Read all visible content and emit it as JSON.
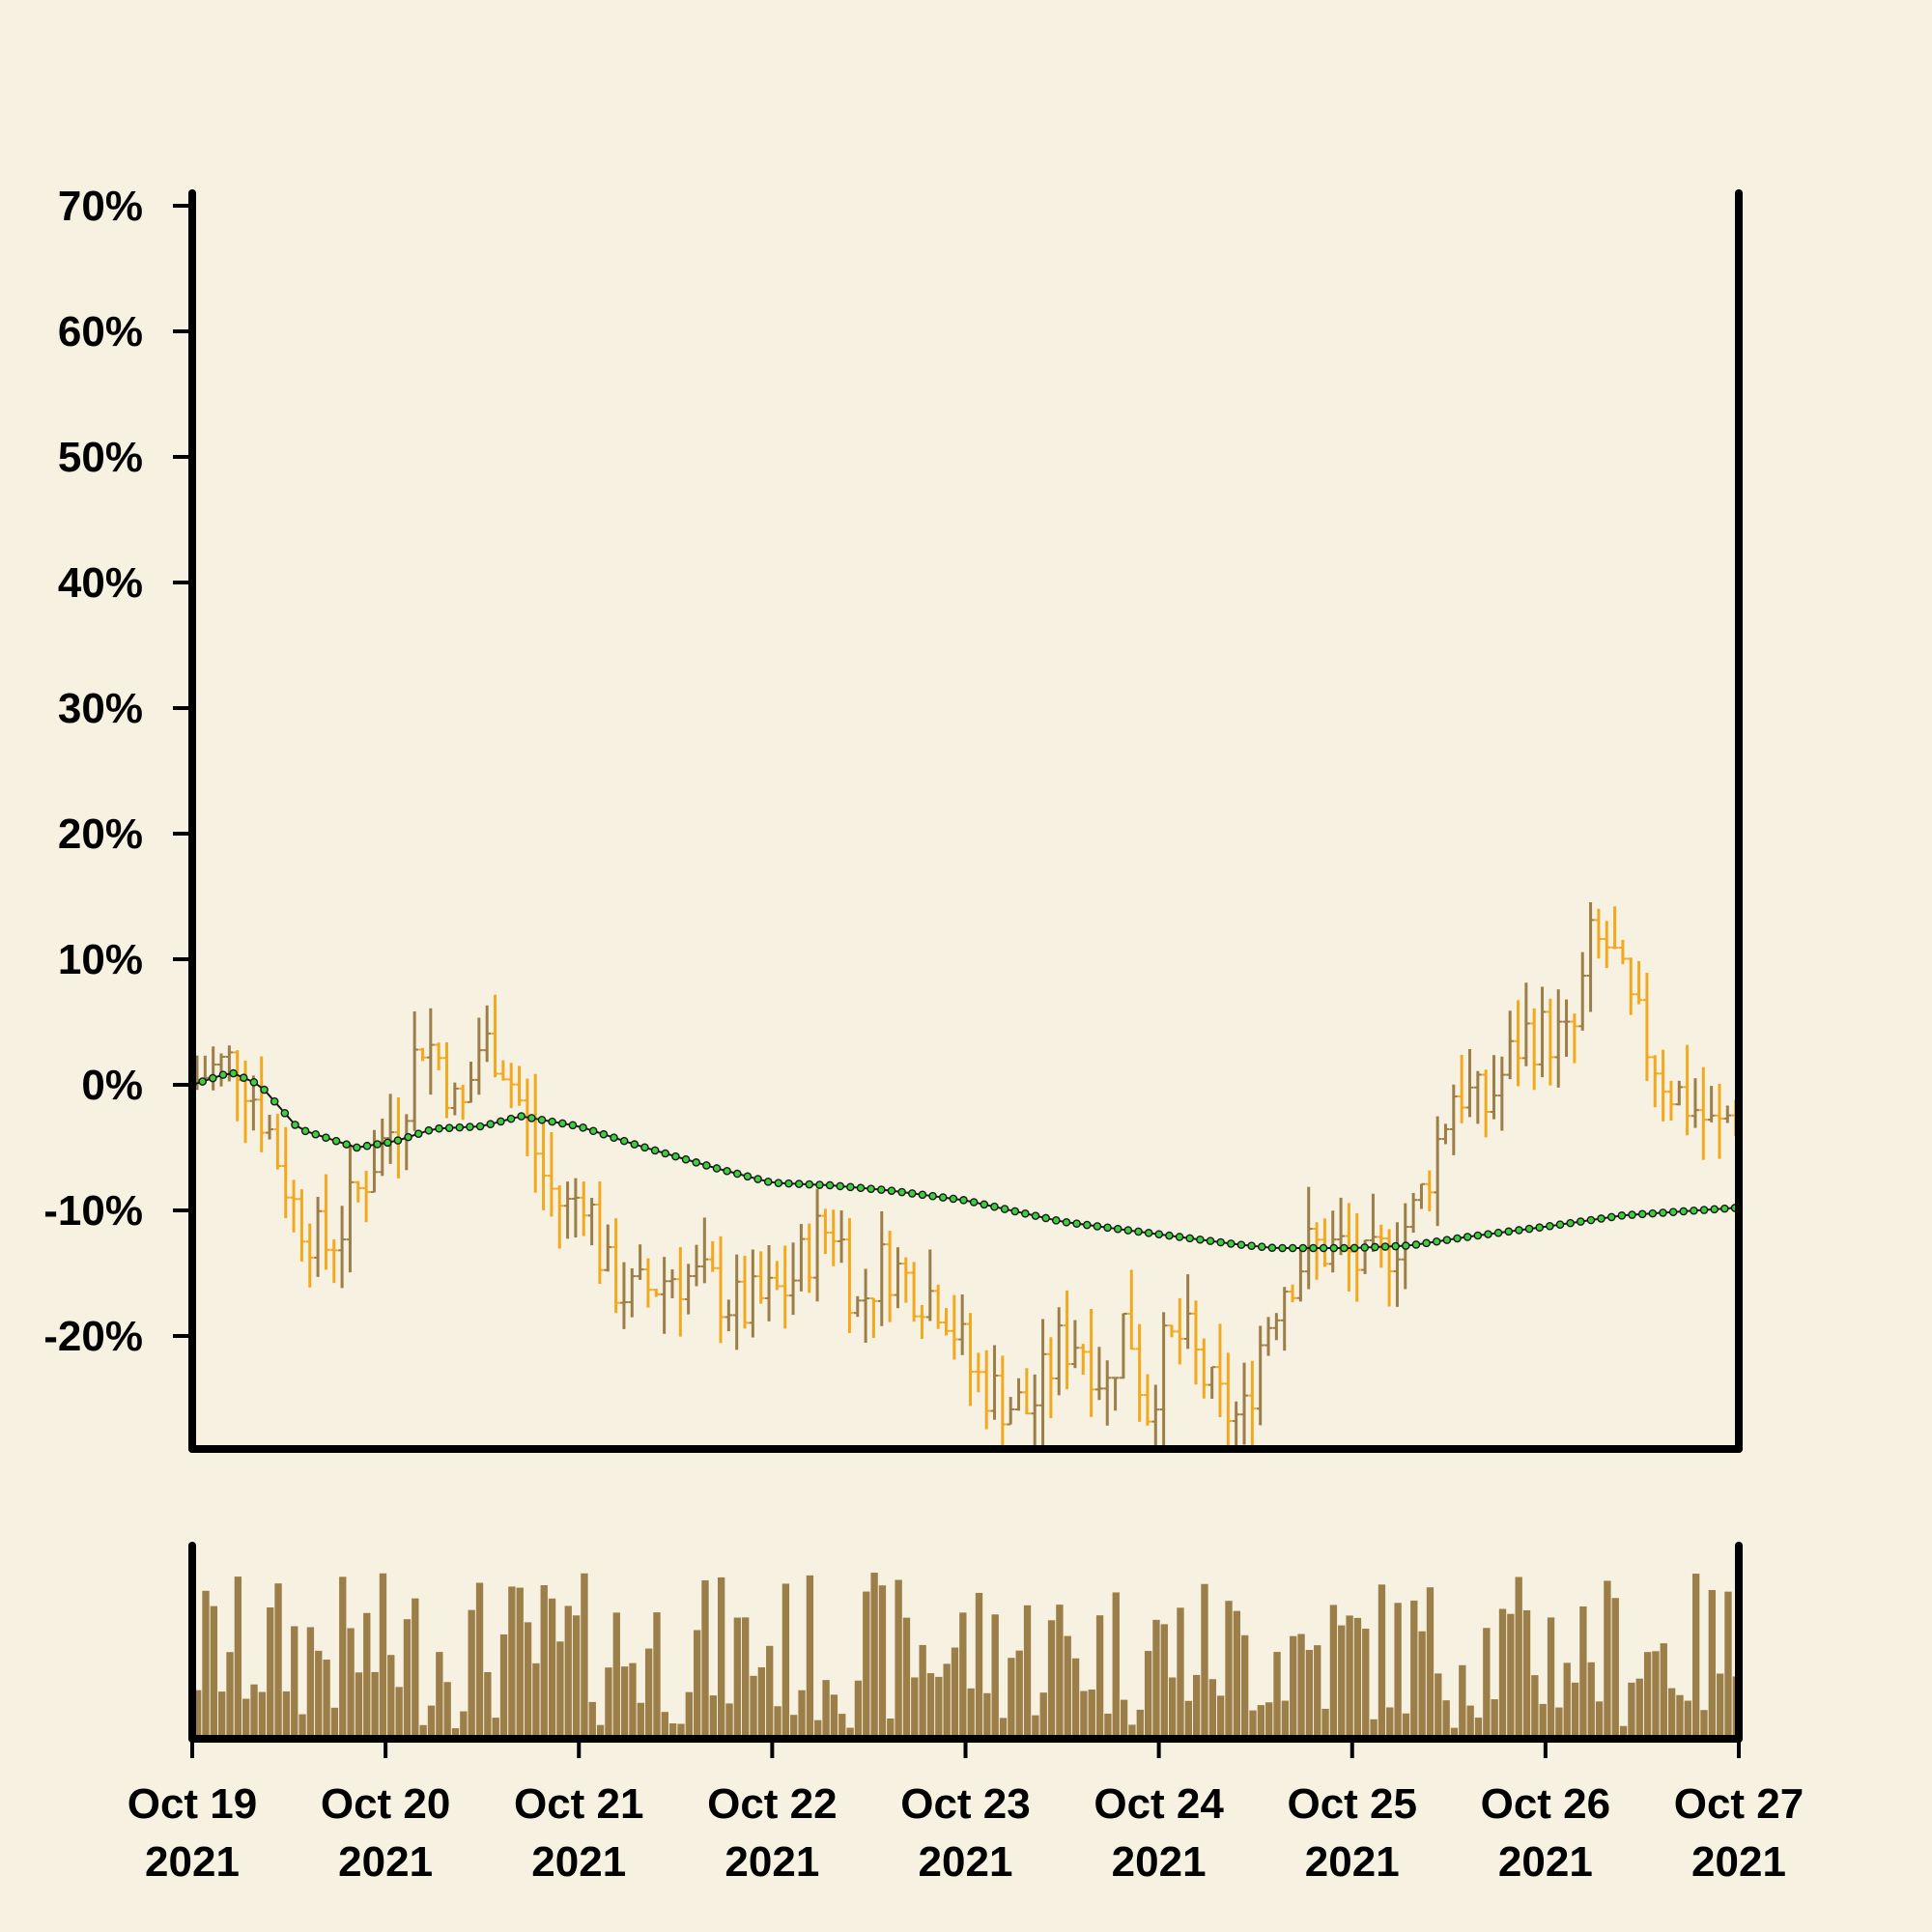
{
  "chart_data": {
    "type": "ohlc",
    "title": "",
    "xlabel": "",
    "ylabel": "",
    "y_unit": "%",
    "ylim": [
      -29,
      71
    ],
    "y_ticks": [
      -20,
      -10,
      0,
      10,
      20,
      30,
      40,
      50,
      60,
      70
    ],
    "y_tick_labels": [
      "-20%",
      "-10%",
      "0%",
      "10%",
      "20%",
      "30%",
      "40%",
      "50%",
      "60%",
      "70%"
    ],
    "x_range": [
      "2021-10-19",
      "2021-10-27"
    ],
    "x_ticks": [
      {
        "date": "2021-10-19",
        "label_1": "Oct 19",
        "label_2": "2021"
      },
      {
        "date": "2021-10-20",
        "label_1": "Oct 20",
        "label_2": "2021"
      },
      {
        "date": "2021-10-21",
        "label_1": "Oct 21",
        "label_2": "2021"
      },
      {
        "date": "2021-10-22",
        "label_1": "Oct 22",
        "label_2": "2021"
      },
      {
        "date": "2021-10-23",
        "label_1": "Oct 23",
        "label_2": "2021"
      },
      {
        "date": "2021-10-24",
        "label_1": "Oct 24",
        "label_2": "2021"
      },
      {
        "date": "2021-10-25",
        "label_1": "Oct 25",
        "label_2": "2021"
      },
      {
        "date": "2021-10-26",
        "label_1": "Oct 26",
        "label_2": "2021"
      },
      {
        "date": "2021-10-27",
        "label_1": "Oct 27",
        "label_2": "2021"
      }
    ],
    "grid": false,
    "colors": {
      "up": "#9c7e48",
      "down": "#f2a91f",
      "volume": "#9c7e48",
      "trend_line": "#1a1a1a",
      "trend_marker": "#3cd13c",
      "axis": "#000000",
      "background": "#f6f1e1"
    },
    "price_path": [
      {
        "day": 0.0,
        "value": 0
      },
      {
        "day": 0.1,
        "value": 1
      },
      {
        "day": 0.25,
        "value": 2
      },
      {
        "day": 0.4,
        "value": -3
      },
      {
        "day": 0.55,
        "value": -10
      },
      {
        "day": 0.7,
        "value": -13
      },
      {
        "day": 0.8,
        "value": -11
      },
      {
        "day": 0.95,
        "value": -6
      },
      {
        "day": 1.1,
        "value": -2
      },
      {
        "day": 1.2,
        "value": 4
      },
      {
        "day": 1.3,
        "value": 2
      },
      {
        "day": 1.4,
        "value": -3
      },
      {
        "day": 1.5,
        "value": 3
      },
      {
        "day": 1.6,
        "value": 3
      },
      {
        "day": 1.7,
        "value": -1
      },
      {
        "day": 1.85,
        "value": -8
      },
      {
        "day": 1.95,
        "value": -10
      },
      {
        "day": 2.05,
        "value": -8
      },
      {
        "day": 2.15,
        "value": -15
      },
      {
        "day": 2.3,
        "value": -17
      },
      {
        "day": 2.5,
        "value": -15
      },
      {
        "day": 2.7,
        "value": -16
      },
      {
        "day": 2.85,
        "value": -18
      },
      {
        "day": 3.0,
        "value": -17
      },
      {
        "day": 3.1,
        "value": -16
      },
      {
        "day": 3.25,
        "value": -12
      },
      {
        "day": 3.35,
        "value": -11
      },
      {
        "day": 3.45,
        "value": -18
      },
      {
        "day": 3.6,
        "value": -14
      },
      {
        "day": 3.75,
        "value": -16
      },
      {
        "day": 3.9,
        "value": -17
      },
      {
        "day": 4.05,
        "value": -23
      },
      {
        "day": 4.2,
        "value": -25
      },
      {
        "day": 4.35,
        "value": -26
      },
      {
        "day": 4.5,
        "value": -21
      },
      {
        "day": 4.6,
        "value": -20
      },
      {
        "day": 4.75,
        "value": -24
      },
      {
        "day": 4.85,
        "value": -18
      },
      {
        "day": 4.95,
        "value": -26
      },
      {
        "day": 5.05,
        "value": -21
      },
      {
        "day": 5.15,
        "value": -20
      },
      {
        "day": 5.3,
        "value": -25
      },
      {
        "day": 5.45,
        "value": -27
      },
      {
        "day": 5.55,
        "value": -20
      },
      {
        "day": 5.65,
        "value": -16
      },
      {
        "day": 5.8,
        "value": -13
      },
      {
        "day": 5.95,
        "value": -13
      },
      {
        "day": 6.1,
        "value": -15
      },
      {
        "day": 6.25,
        "value": -12
      },
      {
        "day": 6.35,
        "value": -10
      },
      {
        "day": 6.45,
        "value": -5
      },
      {
        "day": 6.55,
        "value": 0
      },
      {
        "day": 6.7,
        "value": -2
      },
      {
        "day": 6.8,
        "value": 1
      },
      {
        "day": 6.9,
        "value": 4
      },
      {
        "day": 7.05,
        "value": 4
      },
      {
        "day": 7.15,
        "value": 3
      },
      {
        "day": 7.25,
        "value": 11
      },
      {
        "day": 7.35,
        "value": 11
      },
      {
        "day": 7.45,
        "value": 6
      },
      {
        "day": 7.55,
        "value": 3
      },
      {
        "day": 7.65,
        "value": 0
      },
      {
        "day": 7.8,
        "value": -2
      },
      {
        "day": 7.9,
        "value": -4
      },
      {
        "day": 7.98,
        "value": -2
      }
    ],
    "trend_path": [
      {
        "day": 0.0,
        "value": 0
      },
      {
        "day": 0.2,
        "value": 1
      },
      {
        "day": 0.35,
        "value": 0
      },
      {
        "day": 0.55,
        "value": -3.5
      },
      {
        "day": 0.85,
        "value": -5
      },
      {
        "day": 1.05,
        "value": -4.5
      },
      {
        "day": 1.25,
        "value": -3.5
      },
      {
        "day": 1.5,
        "value": -3.3
      },
      {
        "day": 1.7,
        "value": -2.5
      },
      {
        "day": 2.0,
        "value": -3.3
      },
      {
        "day": 2.3,
        "value": -4.8
      },
      {
        "day": 2.7,
        "value": -6.6
      },
      {
        "day": 3.0,
        "value": -7.8
      },
      {
        "day": 3.3,
        "value": -8
      },
      {
        "day": 3.6,
        "value": -8.4
      },
      {
        "day": 4.0,
        "value": -9.2
      },
      {
        "day": 4.5,
        "value": -10.9
      },
      {
        "day": 5.0,
        "value": -11.9
      },
      {
        "day": 5.4,
        "value": -12.7
      },
      {
        "day": 5.6,
        "value": -13
      },
      {
        "day": 6.0,
        "value": -13
      },
      {
        "day": 6.3,
        "value": -12.8
      },
      {
        "day": 6.6,
        "value": -12.1
      },
      {
        "day": 7.0,
        "value": -11.3
      },
      {
        "day": 7.4,
        "value": -10.4
      },
      {
        "day": 7.98,
        "value": -9.8
      }
    ]
  }
}
